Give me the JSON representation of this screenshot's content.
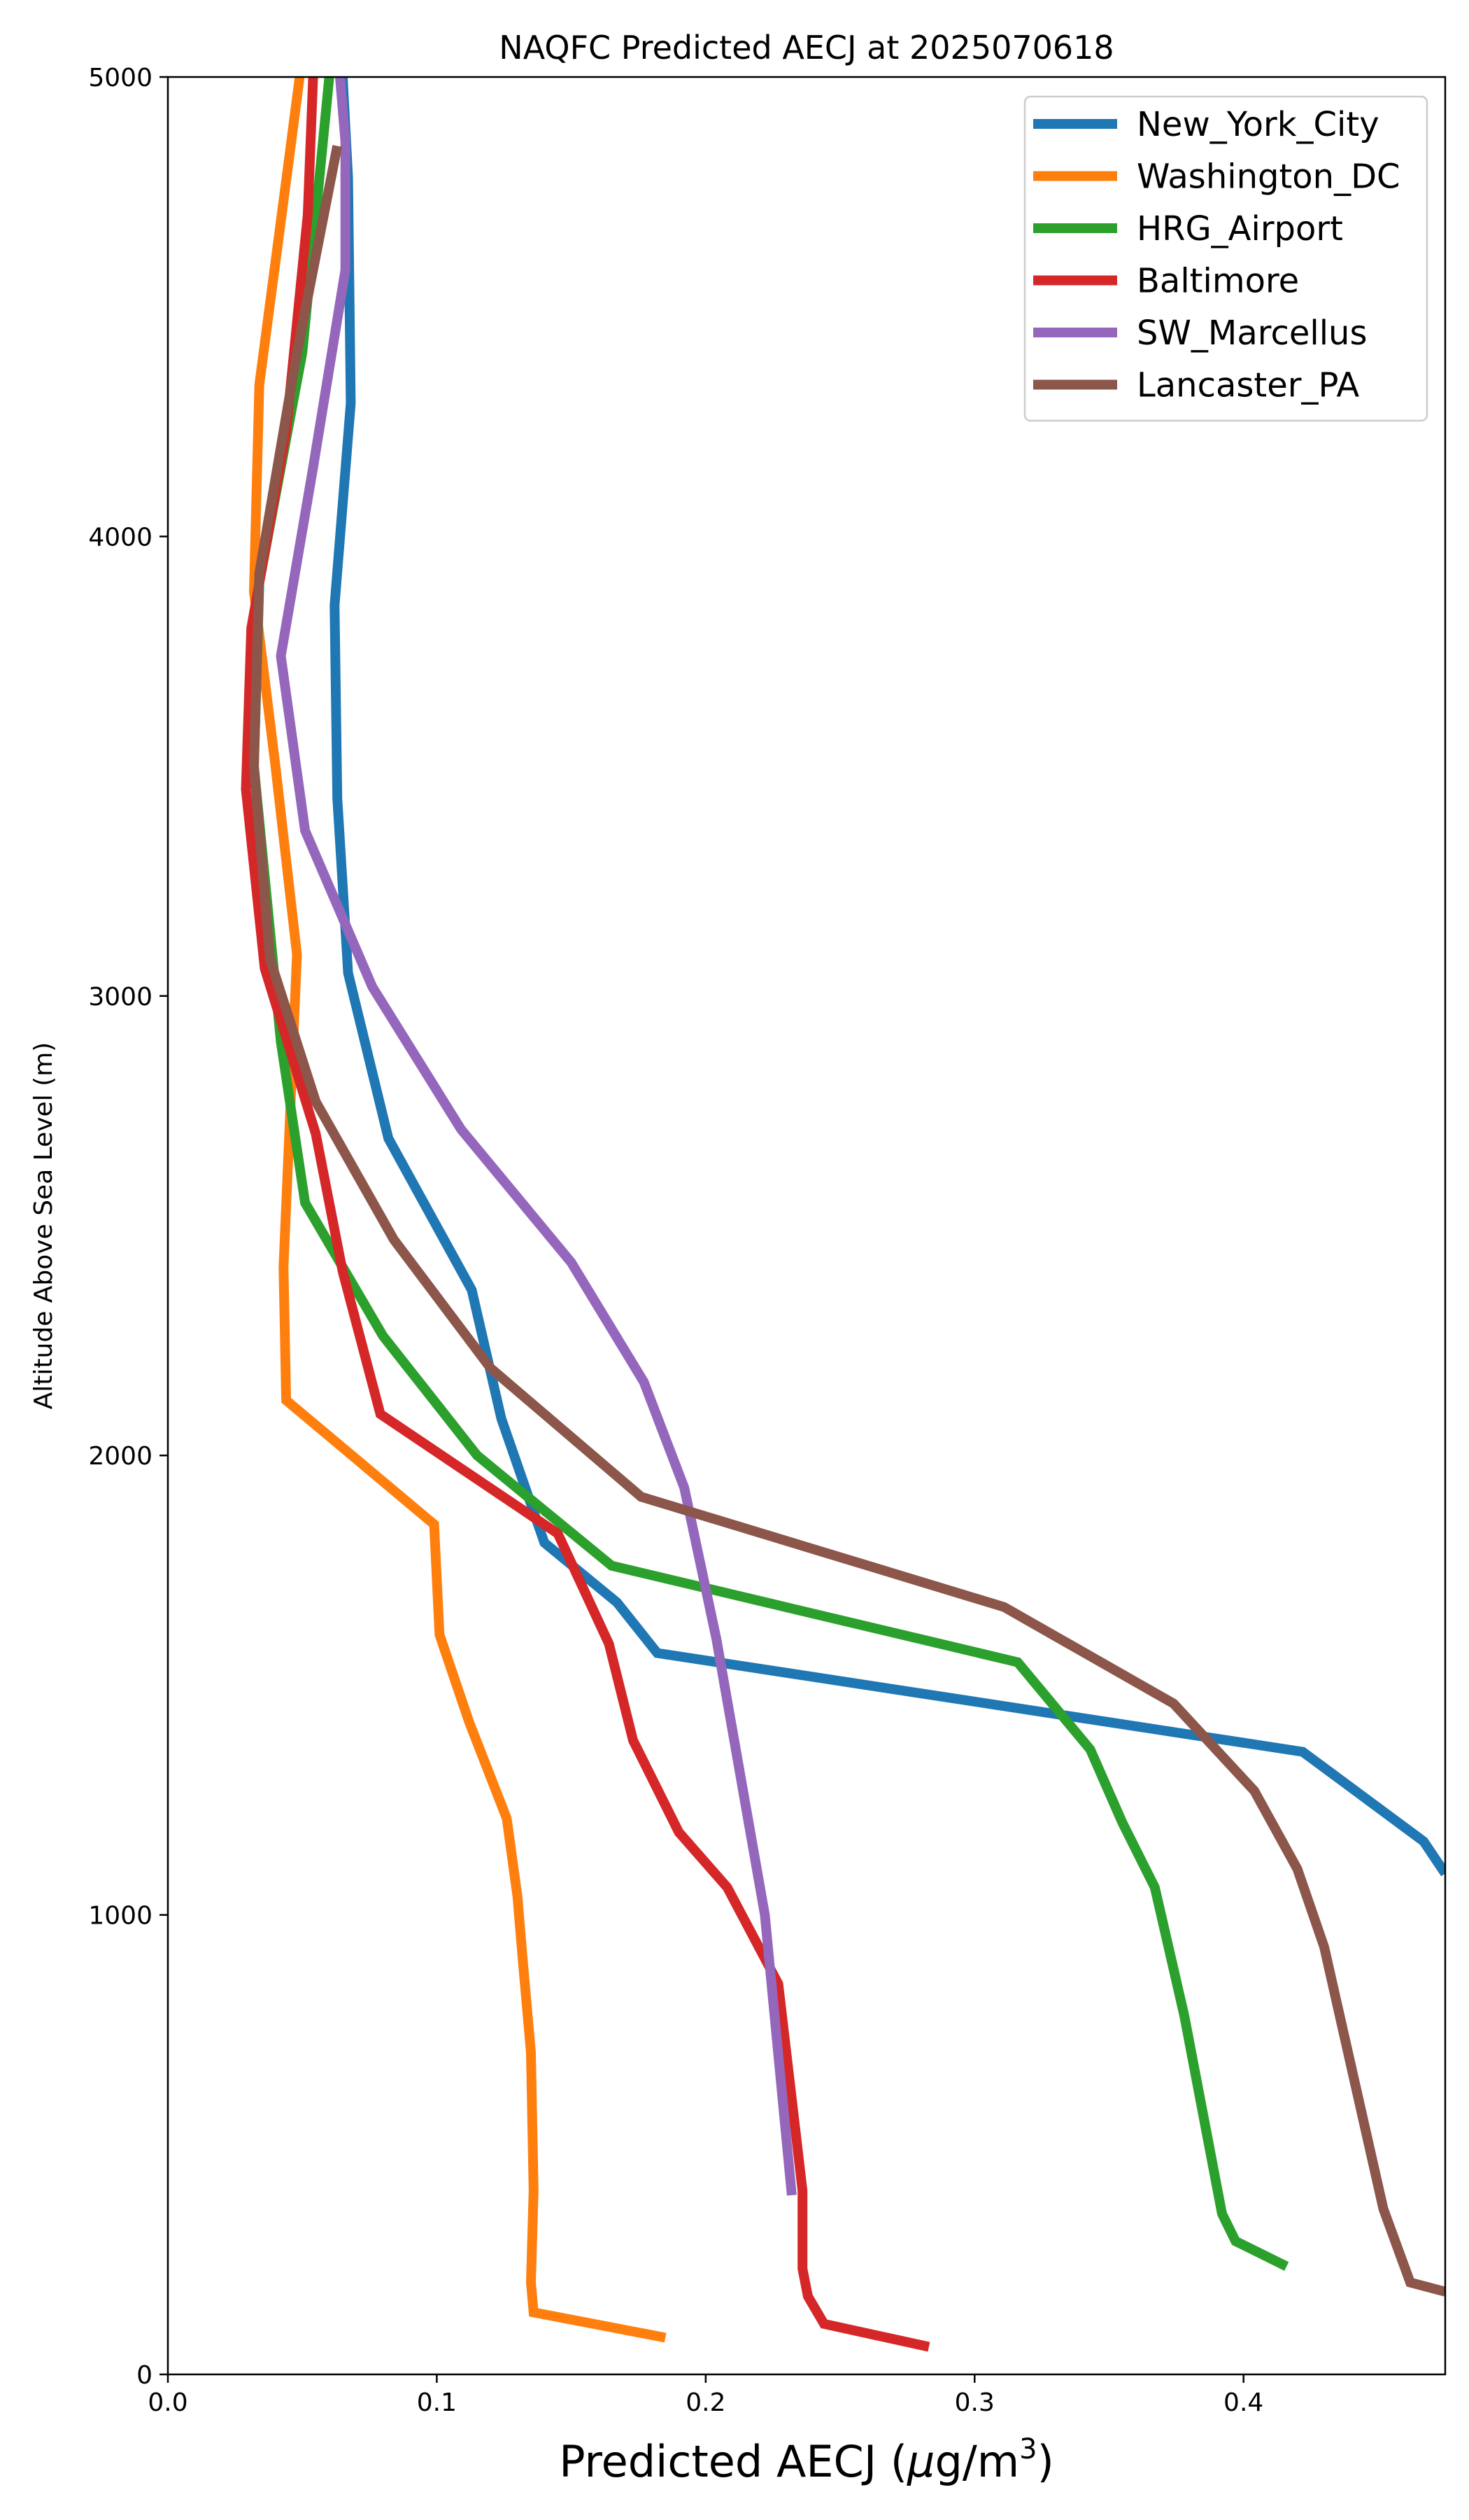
{
  "chart_data": {
    "type": "line",
    "title": "NAQFC Predicted AECJ at 2025070618",
    "xlabel_main": "Predicted AECJ (",
    "xlabel_mu": "μ",
    "xlabel_unit": "g/m",
    "xlabel_sup": "3",
    "xlabel_close": ")",
    "ylabel": "Altitude Above Sea Level (m)",
    "xlim": [
      0.0,
      0.475
    ],
    "ylim": [
      0,
      5000
    ],
    "xticks": [
      "0.0",
      "0.1",
      "0.2",
      "0.3",
      "0.4"
    ],
    "xtick_values": [
      0.0,
      0.1,
      0.2,
      0.3,
      0.4
    ],
    "yticks": [
      "0",
      "1000",
      "2000",
      "3000",
      "4000",
      "5000"
    ],
    "ytick_values": [
      0,
      1000,
      2000,
      3000,
      4000,
      5000
    ],
    "grid": false,
    "legend_position": "top-right",
    "series": [
      {
        "name": "New_York_City",
        "color": "#1f77b4",
        "points": [
          [
            0.475,
            1090
          ],
          [
            0.467,
            1160
          ],
          [
            0.422,
            1355
          ],
          [
            0.182,
            1570
          ],
          [
            0.167,
            1680
          ],
          [
            0.14,
            1810
          ],
          [
            0.124,
            2080
          ],
          [
            0.113,
            2360
          ],
          [
            0.082,
            2690
          ],
          [
            0.067,
            3050
          ],
          [
            0.063,
            3430
          ],
          [
            0.062,
            3850
          ],
          [
            0.068,
            4290
          ],
          [
            0.067,
            4780
          ],
          [
            0.065,
            5000
          ]
        ]
      },
      {
        "name": "Washington_DC",
        "color": "#ff7f0e",
        "points": [
          [
            0.185,
            80
          ],
          [
            0.136,
            135
          ],
          [
            0.135,
            200
          ],
          [
            0.136,
            400
          ],
          [
            0.135,
            700
          ],
          [
            0.132,
            900
          ],
          [
            0.13,
            1040
          ],
          [
            0.126,
            1210
          ],
          [
            0.112,
            1420
          ],
          [
            0.101,
            1610
          ],
          [
            0.099,
            1850
          ],
          [
            0.044,
            2120
          ],
          [
            0.043,
            2410
          ],
          [
            0.048,
            3090
          ],
          [
            0.04,
            3500
          ],
          [
            0.032,
            3880
          ],
          [
            0.034,
            4330
          ],
          [
            0.045,
            4820
          ],
          [
            0.049,
            5000
          ]
        ]
      },
      {
        "name": "HRG_Airport",
        "color": "#2ca02c",
        "points": [
          [
            0.416,
            235
          ],
          [
            0.397,
            290
          ],
          [
            0.392,
            350
          ],
          [
            0.378,
            780
          ],
          [
            0.367,
            1060
          ],
          [
            0.355,
            1200
          ],
          [
            0.343,
            1360
          ],
          [
            0.316,
            1550
          ],
          [
            0.165,
            1760
          ],
          [
            0.115,
            2000
          ],
          [
            0.08,
            2260
          ],
          [
            0.051,
            2550
          ],
          [
            0.042,
            2900
          ],
          [
            0.032,
            3500
          ],
          [
            0.034,
            3900
          ],
          [
            0.05,
            4400
          ],
          [
            0.06,
            5000
          ]
        ]
      },
      {
        "name": "Baltimore",
        "color": "#d62728",
        "points": [
          [
            0.283,
            60
          ],
          [
            0.244,
            110
          ],
          [
            0.238,
            170
          ],
          [
            0.236,
            230
          ],
          [
            0.236,
            400
          ],
          [
            0.227,
            850
          ],
          [
            0.208,
            1060
          ],
          [
            0.19,
            1180
          ],
          [
            0.173,
            1380
          ],
          [
            0.164,
            1590
          ],
          [
            0.145,
            1830
          ],
          [
            0.079,
            2090
          ],
          [
            0.065,
            2400
          ],
          [
            0.055,
            2700
          ],
          [
            0.036,
            3060
          ],
          [
            0.029,
            3450
          ],
          [
            0.031,
            3800
          ],
          [
            0.044,
            4230
          ],
          [
            0.052,
            4700
          ],
          [
            0.054,
            5000
          ]
        ]
      },
      {
        "name": "SW_Marcellus",
        "color": "#9467bd",
        "points": [
          [
            0.232,
            390
          ],
          [
            0.222,
            1000
          ],
          [
            0.204,
            1600
          ],
          [
            0.192,
            1930
          ],
          [
            0.177,
            2160
          ],
          [
            0.15,
            2420
          ],
          [
            0.109,
            2710
          ],
          [
            0.076,
            3020
          ],
          [
            0.051,
            3360
          ],
          [
            0.042,
            3740
          ],
          [
            0.054,
            4150
          ],
          [
            0.066,
            4580
          ],
          [
            0.066,
            4860
          ],
          [
            0.064,
            5000
          ]
        ]
      },
      {
        "name": "Lancaster_PA",
        "color": "#8c564b",
        "points": [
          [
            0.475,
            180
          ],
          [
            0.462,
            200
          ],
          [
            0.452,
            360
          ],
          [
            0.43,
            930
          ],
          [
            0.42,
            1100
          ],
          [
            0.404,
            1270
          ],
          [
            0.374,
            1460
          ],
          [
            0.311,
            1670
          ],
          [
            0.176,
            1910
          ],
          [
            0.12,
            2190
          ],
          [
            0.084,
            2470
          ],
          [
            0.055,
            2770
          ],
          [
            0.038,
            3080
          ],
          [
            0.032,
            3500
          ],
          [
            0.034,
            3920
          ],
          [
            0.048,
            4400
          ],
          [
            0.063,
            4850
          ]
        ]
      }
    ]
  }
}
